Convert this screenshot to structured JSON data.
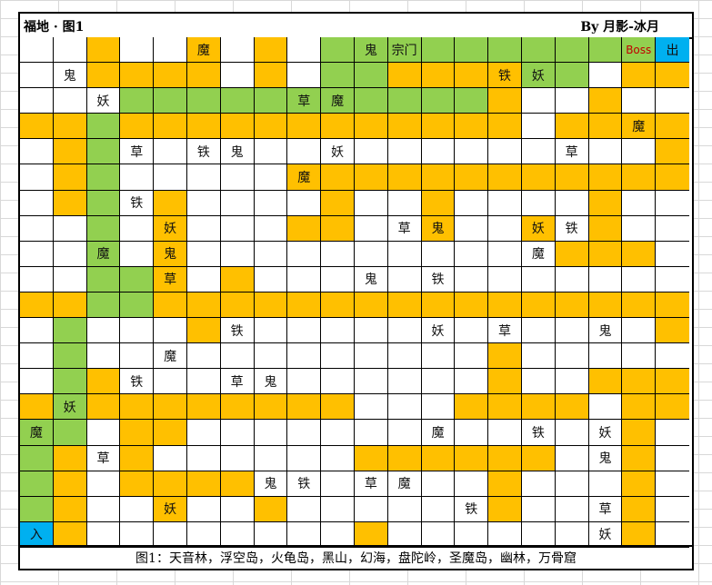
{
  "header": {
    "title": "福地 · 图1",
    "author": "By 月影-冰月"
  },
  "caption": "图1：天音林，浮空岛，火龟岛，黑山，幻海，盘陀岭，圣魔岛，幽林，万骨窟",
  "legend_colors": {
    "w": "#ffffff",
    "o": "#ffc000",
    "g": "#92d050",
    "b": "#00b0f0",
    "c": "#66ffff",
    "r": "#ff0000"
  },
  "map": {
    "tile_rows": [
      "wwowwowowggggggggggb",
      "wwoooowowggooooggwoo",
      "wwwgggggggggggowwoww",
      "oogoooooooooooowoooo",
      "wogwwwwwwwwwwwwwwwwo",
      "wogwwwwwoooooooooooo",
      "wogwowwwwowwowwwwoww",
      "wwgwowwwoowwowwowoww",
      "wwgwowwwwwwwwwwwooow",
      "wwggowowwwwwwwwwwwww",
      "ooggoooooooooooooooo",
      "wgwwwowwwwwwwwwwwwwo",
      "wgwwwwwwwwwwwwowwwww",
      "wgowwwwwwwwwwwowwooo",
      "ogoooooooowwwoooowoo",
      "ggwoowwwwwwwwwwwwwow",
      "gowowwwwwwoooooowwow",
      "gowoooowwwwwwwowwwow",
      "gowwowwowwwwwwowwwow",
      "bowwwwwwwwowwwwwwwow"
    ],
    "labels": [
      [
        "",
        "",
        "",
        "",
        "",
        "魔",
        "",
        "",
        "",
        "",
        "鬼",
        "宗门",
        "",
        "",
        "",
        "",
        "",
        "",
        "Boss",
        "出"
      ],
      [
        "",
        "鬼",
        "",
        "",
        "",
        "",
        "",
        "",
        "",
        "",
        "",
        "",
        "",
        "",
        "铁",
        "妖",
        "",
        "",
        "",
        ""
      ],
      [
        "",
        "",
        "妖",
        "",
        "",
        "",
        "",
        "",
        "草",
        "魔",
        "",
        "",
        "",
        "",
        "",
        "",
        "",
        "",
        "",
        ""
      ],
      [
        "",
        "",
        "",
        "",
        "",
        "",
        "",
        "",
        "",
        "",
        "",
        "",
        "",
        "",
        "",
        "",
        "",
        "",
        "魔",
        ""
      ],
      [
        "",
        "",
        "",
        "草",
        "",
        "铁",
        "鬼",
        "",
        "",
        "妖",
        "",
        "",
        "",
        "",
        "",
        "",
        "草",
        "",
        "",
        ""
      ],
      [
        "",
        "",
        "",
        "",
        "",
        "",
        "",
        "",
        "魔",
        "",
        "",
        "",
        "",
        "",
        "",
        "",
        "",
        "",
        "",
        ""
      ],
      [
        "",
        "",
        "",
        "铁",
        "",
        "",
        "",
        "",
        "",
        "",
        "",
        "",
        "",
        "",
        "",
        "",
        "",
        "",
        "",
        ""
      ],
      [
        "",
        "",
        "",
        "",
        "妖",
        "",
        "",
        "",
        "",
        "",
        "",
        "草",
        "鬼",
        "",
        "",
        "妖",
        "铁",
        "",
        "",
        ""
      ],
      [
        "",
        "",
        "魔",
        "",
        "鬼",
        "",
        "",
        "",
        "",
        "",
        "",
        "",
        "",
        "",
        "",
        "魔",
        "",
        "",
        "",
        ""
      ],
      [
        "",
        "",
        "",
        "",
        "草",
        "",
        "",
        "",
        "",
        "",
        "鬼",
        "",
        "铁",
        "",
        "",
        "",
        "",
        "",
        "",
        ""
      ],
      [
        "",
        "",
        "",
        "",
        "",
        "",
        "",
        "",
        "",
        "",
        "",
        "",
        "",
        "",
        "",
        "",
        "",
        "",
        "",
        ""
      ],
      [
        "",
        "",
        "",
        "",
        "",
        "",
        "铁",
        "",
        "",
        "",
        "",
        "",
        "妖",
        "",
        "草",
        "",
        "",
        "鬼",
        "",
        ""
      ],
      [
        "",
        "",
        "",
        "",
        "魔",
        "",
        "",
        "",
        "",
        "",
        "",
        "",
        "",
        "",
        "",
        "",
        "",
        "",
        "",
        ""
      ],
      [
        "",
        "",
        "",
        "铁",
        "",
        "",
        "草",
        "鬼",
        "",
        "",
        "",
        "",
        "",
        "",
        "",
        "",
        "",
        "",
        "",
        ""
      ],
      [
        "",
        "妖",
        "",
        "",
        "",
        "",
        "",
        "",
        "",
        "",
        "",
        "",
        "",
        "",
        "",
        "",
        "",
        "",
        "",
        ""
      ],
      [
        "魔",
        "",
        "",
        "",
        "",
        "",
        "",
        "",
        "",
        "",
        "",
        "",
        "魔",
        "",
        "",
        "铁",
        "",
        "妖",
        "",
        ""
      ],
      [
        "",
        "",
        "草",
        "",
        "",
        "",
        "",
        "",
        "",
        "",
        "",
        "",
        "",
        "",
        "",
        "",
        "",
        "鬼",
        "",
        ""
      ],
      [
        "",
        "",
        "",
        "",
        "",
        "",
        "",
        "鬼",
        "铁",
        "",
        "草",
        "魔",
        "",
        "",
        "",
        "",
        "",
        "",
        "",
        ""
      ],
      [
        "",
        "",
        "",
        "",
        "妖",
        "",
        "",
        "",
        "",
        "",
        "",
        "",
        "",
        "铁",
        "",
        "",
        "",
        "草",
        "",
        ""
      ],
      [
        "入",
        "",
        "",
        "",
        "",
        "",
        "",
        "",
        "",
        "",
        "",
        "",
        "",
        "",
        "",
        "",
        "",
        "妖",
        "",
        ""
      ]
    ]
  }
}
